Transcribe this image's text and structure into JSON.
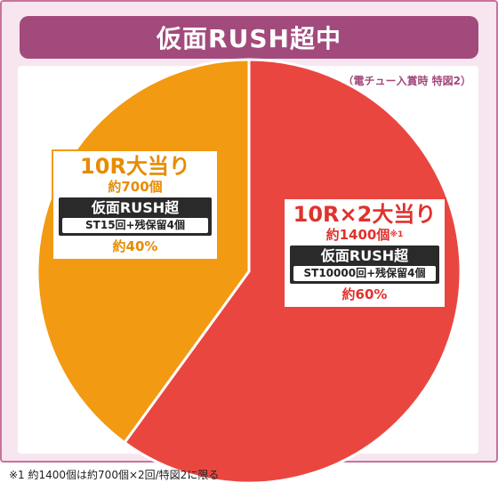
{
  "header": {
    "title": "仮面RUSH超中"
  },
  "note_top": "（電チュー入賞時 特図2）",
  "chart_data": {
    "type": "pie",
    "title": "仮面RUSH超中",
    "subtitle": "（電チュー入賞時 特図2）",
    "slices": [
      {
        "key": "red",
        "label": "10R×2大当り",
        "payout": "約1400個",
        "payout_mark": "※1",
        "mode": "仮面RUSH超",
        "detail": "ST10000回+残保留4個",
        "percent_label": "約60%",
        "value": 60,
        "color": "#ea4640"
      },
      {
        "key": "orange",
        "label": "10R大当り",
        "payout": "約700個",
        "mode": "仮面RUSH超",
        "detail": "ST15回+残保留4個",
        "percent_label": "約40%",
        "value": 40,
        "color": "#f29a11"
      }
    ]
  },
  "footnote": "※1 約1400個は約700個×2回/特図2に限る"
}
